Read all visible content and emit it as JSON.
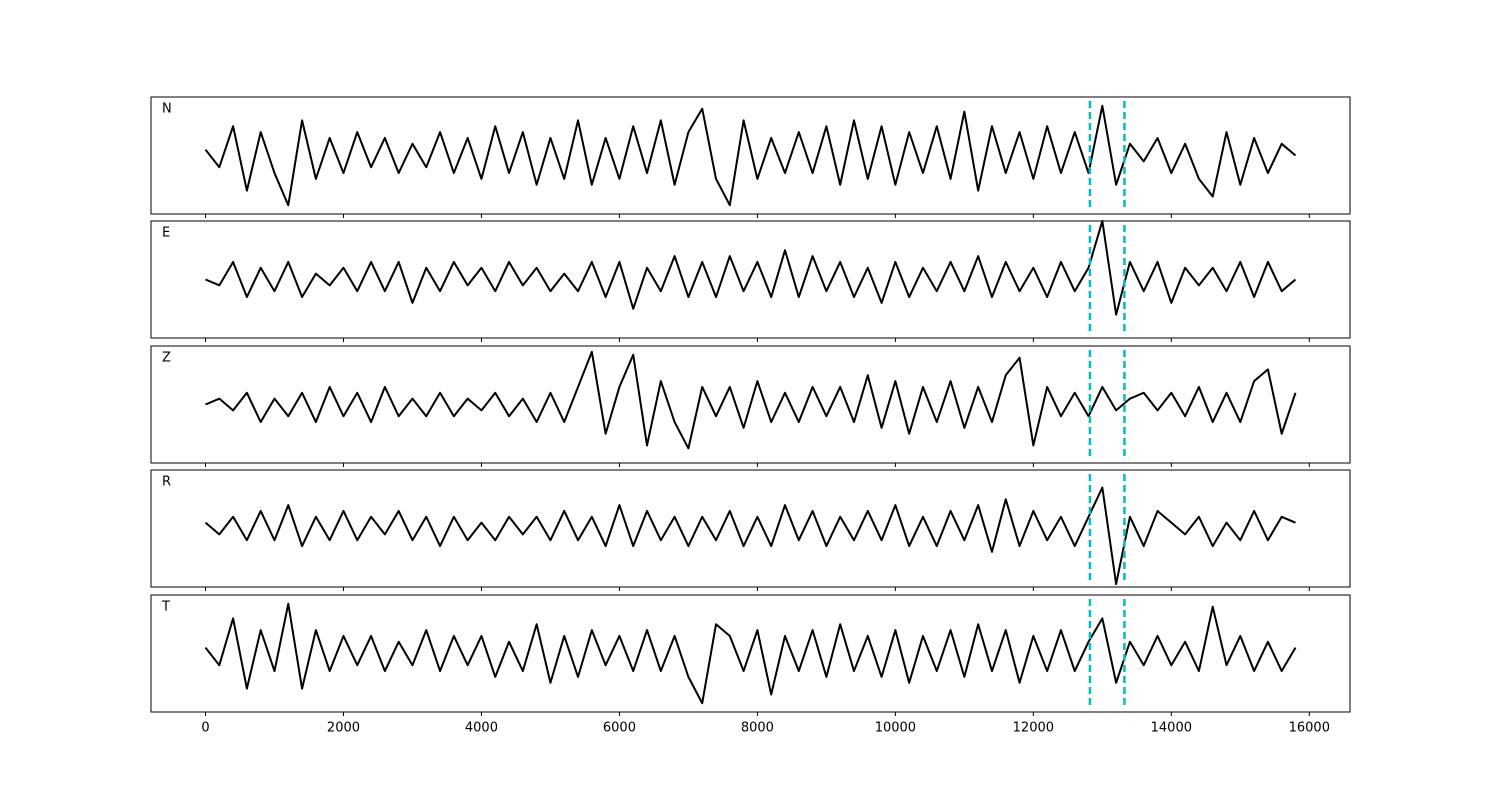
{
  "chart_data": {
    "type": "line",
    "subplots": true,
    "x": [
      0,
      200,
      400,
      600,
      800,
      1000,
      1200,
      1400,
      1600,
      1800,
      2000,
      2200,
      2400,
      2600,
      2800,
      3000,
      3200,
      3400,
      3600,
      3800,
      4000,
      4200,
      4400,
      4600,
      4800,
      5000,
      5200,
      5400,
      5600,
      5800,
      6000,
      6200,
      6400,
      6600,
      6800,
      7000,
      7200,
      7400,
      7600,
      7800,
      8000,
      8200,
      8400,
      8600,
      8800,
      9000,
      9200,
      9400,
      9600,
      9800,
      10000,
      10200,
      10400,
      10600,
      10800,
      11000,
      11200,
      11400,
      11600,
      11800,
      12000,
      12200,
      12400,
      12600,
      12800,
      13000,
      13200,
      13400,
      13600,
      13800,
      14000,
      14200,
      14400,
      14600,
      14800,
      15000,
      15200,
      15400,
      15600,
      15800
    ],
    "series": [
      {
        "name": "N",
        "color": "#000000",
        "values": [
          0.1,
          -0.2,
          0.5,
          -0.6,
          0.4,
          -0.3,
          -0.85,
          0.6,
          -0.4,
          0.3,
          -0.3,
          0.4,
          -0.2,
          0.3,
          -0.3,
          0.2,
          -0.2,
          0.4,
          -0.3,
          0.3,
          -0.4,
          0.5,
          -0.3,
          0.4,
          -0.5,
          0.3,
          -0.4,
          0.6,
          -0.5,
          0.3,
          -0.4,
          0.5,
          -0.3,
          0.6,
          -0.5,
          0.4,
          0.8,
          -0.4,
          -0.85,
          0.6,
          -0.4,
          0.3,
          -0.3,
          0.4,
          -0.3,
          0.5,
          -0.5,
          0.6,
          -0.4,
          0.5,
          -0.5,
          0.4,
          -0.3,
          0.5,
          -0.4,
          0.75,
          -0.6,
          0.5,
          -0.3,
          0.4,
          -0.4,
          0.5,
          -0.3,
          0.4,
          -0.3,
          0.85,
          -0.5,
          0.2,
          -0.1,
          0.3,
          -0.3,
          0.2,
          -0.4,
          -0.7,
          0.4,
          -0.5,
          0.3,
          -0.3,
          0.2,
          0.0
        ]
      },
      {
        "name": "E",
        "color": "#000000",
        "values": [
          0.0,
          -0.1,
          0.3,
          -0.3,
          0.2,
          -0.2,
          0.3,
          -0.3,
          0.1,
          -0.1,
          0.2,
          -0.2,
          0.3,
          -0.2,
          0.3,
          -0.4,
          0.2,
          -0.2,
          0.3,
          -0.1,
          0.2,
          -0.2,
          0.3,
          -0.1,
          0.2,
          -0.2,
          0.1,
          -0.2,
          0.3,
          -0.3,
          0.3,
          -0.5,
          0.2,
          -0.2,
          0.4,
          -0.3,
          0.3,
          -0.3,
          0.4,
          -0.2,
          0.3,
          -0.3,
          0.5,
          -0.3,
          0.4,
          -0.2,
          0.3,
          -0.3,
          0.2,
          -0.4,
          0.3,
          -0.3,
          0.2,
          -0.2,
          0.3,
          -0.2,
          0.4,
          -0.3,
          0.3,
          -0.2,
          0.2,
          -0.3,
          0.3,
          -0.2,
          0.2,
          1.0,
          -0.6,
          0.3,
          -0.2,
          0.3,
          -0.4,
          0.2,
          -0.1,
          0.2,
          -0.2,
          0.3,
          -0.3,
          0.3,
          -0.2,
          0.0
        ]
      },
      {
        "name": "Z",
        "color": "#000000",
        "values": [
          0.0,
          0.1,
          -0.1,
          0.2,
          -0.3,
          0.1,
          -0.2,
          0.2,
          -0.3,
          0.3,
          -0.2,
          0.2,
          -0.3,
          0.3,
          -0.2,
          0.1,
          -0.2,
          0.2,
          -0.2,
          0.1,
          -0.1,
          0.2,
          -0.2,
          0.1,
          -0.3,
          0.2,
          -0.3,
          0.3,
          0.9,
          -0.5,
          0.3,
          0.85,
          -0.7,
          0.4,
          -0.3,
          -0.75,
          0.3,
          -0.2,
          0.3,
          -0.4,
          0.4,
          -0.3,
          0.2,
          -0.3,
          0.3,
          -0.2,
          0.3,
          -0.3,
          0.5,
          -0.4,
          0.4,
          -0.5,
          0.3,
          -0.3,
          0.4,
          -0.4,
          0.3,
          -0.3,
          0.5,
          0.8,
          -0.7,
          0.3,
          -0.2,
          0.2,
          -0.2,
          0.3,
          -0.1,
          0.1,
          0.2,
          -0.1,
          0.2,
          -0.2,
          0.3,
          -0.3,
          0.2,
          -0.3,
          0.4,
          0.6,
          -0.5,
          0.2
        ]
      },
      {
        "name": "R",
        "color": "#000000",
        "values": [
          0.1,
          -0.1,
          0.2,
          -0.2,
          0.3,
          -0.2,
          0.4,
          -0.3,
          0.2,
          -0.2,
          0.3,
          -0.2,
          0.2,
          -0.1,
          0.3,
          -0.2,
          0.2,
          -0.3,
          0.2,
          -0.2,
          0.1,
          -0.2,
          0.2,
          -0.1,
          0.2,
          -0.2,
          0.3,
          -0.2,
          0.2,
          -0.3,
          0.4,
          -0.3,
          0.3,
          -0.2,
          0.2,
          -0.3,
          0.2,
          -0.2,
          0.3,
          -0.3,
          0.2,
          -0.3,
          0.4,
          -0.2,
          0.3,
          -0.3,
          0.2,
          -0.2,
          0.3,
          -0.2,
          0.4,
          -0.3,
          0.2,
          -0.3,
          0.3,
          -0.2,
          0.4,
          -0.4,
          0.5,
          -0.3,
          0.3,
          -0.2,
          0.2,
          -0.3,
          0.2,
          0.7,
          -0.95,
          0.2,
          -0.3,
          0.3,
          0.1,
          -0.1,
          0.2,
          -0.3,
          0.1,
          -0.2,
          0.3,
          -0.2,
          0.2,
          0.1
        ]
      },
      {
        "name": "T",
        "color": "#000000",
        "values": [
          0.1,
          -0.2,
          0.6,
          -0.6,
          0.4,
          -0.3,
          0.85,
          -0.6,
          0.4,
          -0.3,
          0.3,
          -0.2,
          0.3,
          -0.3,
          0.2,
          -0.2,
          0.4,
          -0.3,
          0.3,
          -0.2,
          0.3,
          -0.4,
          0.2,
          -0.3,
          0.5,
          -0.5,
          0.3,
          -0.4,
          0.4,
          -0.2,
          0.3,
          -0.3,
          0.4,
          -0.3,
          0.3,
          -0.4,
          -0.85,
          0.5,
          0.3,
          -0.3,
          0.4,
          -0.7,
          0.3,
          -0.3,
          0.4,
          -0.4,
          0.5,
          -0.3,
          0.3,
          -0.4,
          0.4,
          -0.5,
          0.3,
          -0.3,
          0.4,
          -0.4,
          0.5,
          -0.3,
          0.4,
          -0.5,
          0.3,
          -0.3,
          0.4,
          -0.3,
          0.2,
          0.6,
          -0.5,
          0.2,
          -0.2,
          0.3,
          -0.2,
          0.2,
          -0.3,
          0.8,
          -0.2,
          0.3,
          -0.3,
          0.2,
          -0.3,
          0.1
        ]
      }
    ],
    "xlim": [
      -790,
      16590
    ],
    "xticks": [
      0,
      2000,
      4000,
      6000,
      8000,
      10000,
      12000,
      14000,
      16000
    ],
    "ylim": [
      -1,
      1
    ],
    "vlines": [
      12820,
      13320
    ],
    "vline_color": "#00bfbf"
  }
}
